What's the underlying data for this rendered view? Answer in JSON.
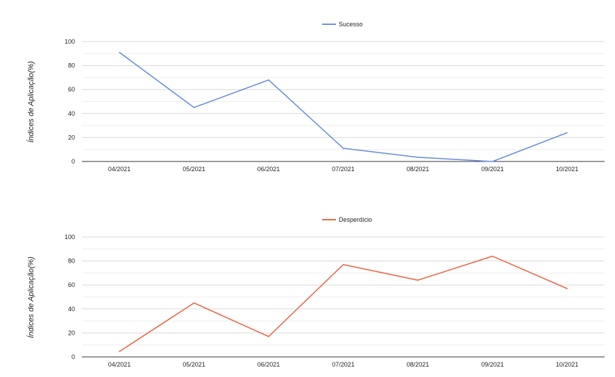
{
  "chart_data": [
    {
      "type": "line",
      "categories": [
        "04/2021",
        "05/2021",
        "06/2021",
        "07/2021",
        "08/2021",
        "09/2021",
        "10/2021"
      ],
      "series": [
        {
          "name": "Sucesso",
          "color": "#6d8fdb",
          "values": [
            91,
            45,
            68,
            11,
            3.5,
            0,
            24
          ]
        }
      ],
      "ylabel": "Índices de Aplicação(%)",
      "ylim": [
        0,
        100
      ],
      "yticks": [
        0,
        20,
        40,
        60,
        80,
        100
      ],
      "grid": true,
      "legend_position": "top-center"
    },
    {
      "type": "line",
      "categories": [
        "04/2021",
        "05/2021",
        "06/2021",
        "07/2021",
        "08/2021",
        "09/2021",
        "10/2021"
      ],
      "series": [
        {
          "name": "Desperdício",
          "color": "#e8694a",
          "values": [
            4.5,
            45,
            17,
            77,
            64,
            84,
            57
          ]
        }
      ],
      "ylabel": "Índices de Aplicação(%)",
      "ylim": [
        0,
        100
      ],
      "yticks": [
        0,
        20,
        40,
        60,
        80,
        100
      ],
      "grid": true,
      "legend_position": "top-center"
    }
  ]
}
